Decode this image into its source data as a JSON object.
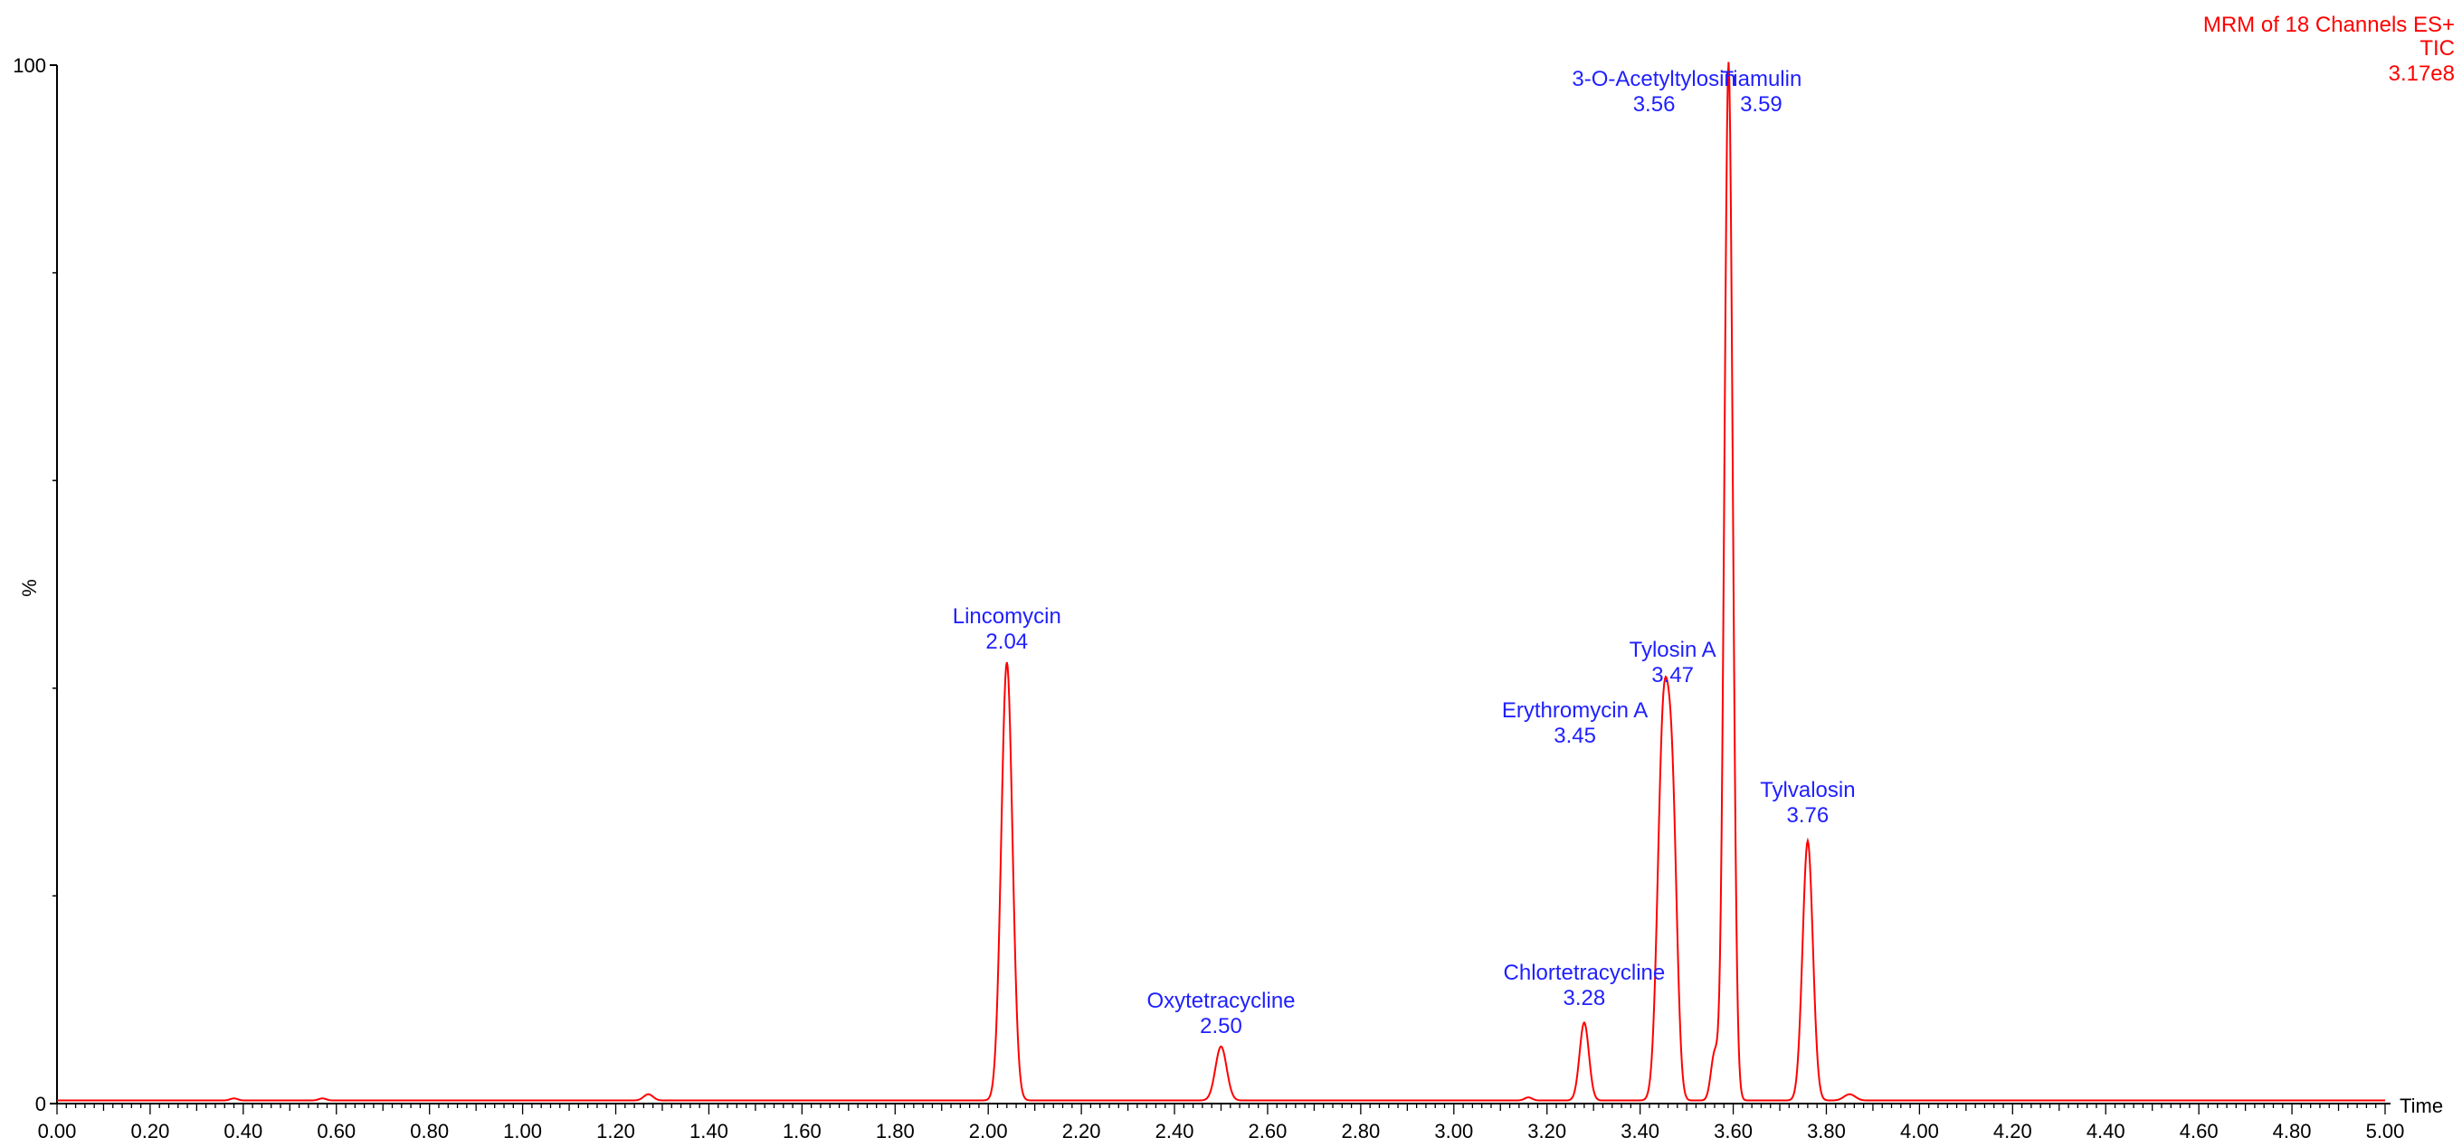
{
  "chart_data": {
    "type": "line",
    "xlabel": "Time",
    "ylabel": "%",
    "xlim": [
      0,
      5.0
    ],
    "ylim": [
      0,
      100
    ],
    "y_ticks": [
      "0",
      "100"
    ],
    "x_ticks": [
      "0.00",
      "0.20",
      "0.40",
      "0.60",
      "0.80",
      "1.00",
      "1.20",
      "1.40",
      "1.60",
      "1.80",
      "2.00",
      "2.20",
      "2.40",
      "2.60",
      "2.80",
      "3.00",
      "3.20",
      "3.40",
      "3.60",
      "3.80",
      "4.00",
      "4.20",
      "4.40",
      "4.60",
      "4.80",
      "5.00"
    ],
    "info": [
      "MRM of 18 Channels ES+",
      "TIC",
      "3.17e8"
    ],
    "colors": {
      "trace": "#ff0000",
      "peak_labels": "#1f1fff",
      "axes": "#000000"
    },
    "baseline": 0.3,
    "series": [
      {
        "peaks": [
          {
            "name": "Lincomycin",
            "rt": "2.04",
            "x": 2.04,
            "height": 42.2,
            "width": 0.012
          },
          {
            "name": "Oxytetracycline",
            "rt": "2.50",
            "x": 2.5,
            "height": 5.2,
            "width": 0.012
          },
          {
            "name": "Chlortetracycline",
            "rt": "3.28",
            "x": 3.28,
            "height": 7.5,
            "width": 0.01
          },
          {
            "name": "Erythromycin A",
            "rt": "3.45",
            "x": 3.45,
            "height": 36.0,
            "width": 0.012
          },
          {
            "name": "Tylosin A",
            "rt": "3.47",
            "x": 3.47,
            "height": 24.0,
            "width": 0.01
          },
          {
            "name": "3-O-Acetyltylosin",
            "rt": "3.56",
            "x": 3.56,
            "height": 4.5,
            "width": 0.008
          },
          {
            "name": "Tiamulin",
            "rt": "3.59",
            "x": 3.59,
            "height": 100.0,
            "width": 0.009
          },
          {
            "name": "Tylvalosin",
            "rt": "3.76",
            "x": 3.76,
            "height": 25.0,
            "width": 0.011
          }
        ],
        "minor_bumps": [
          {
            "x": 1.27,
            "height": 0.6,
            "width": 0.01
          },
          {
            "x": 0.38,
            "height": 0.2,
            "width": 0.008
          },
          {
            "x": 0.57,
            "height": 0.2,
            "width": 0.008
          },
          {
            "x": 3.16,
            "height": 0.3,
            "width": 0.008
          },
          {
            "x": 3.85,
            "height": 0.6,
            "width": 0.012
          }
        ]
      }
    ]
  }
}
